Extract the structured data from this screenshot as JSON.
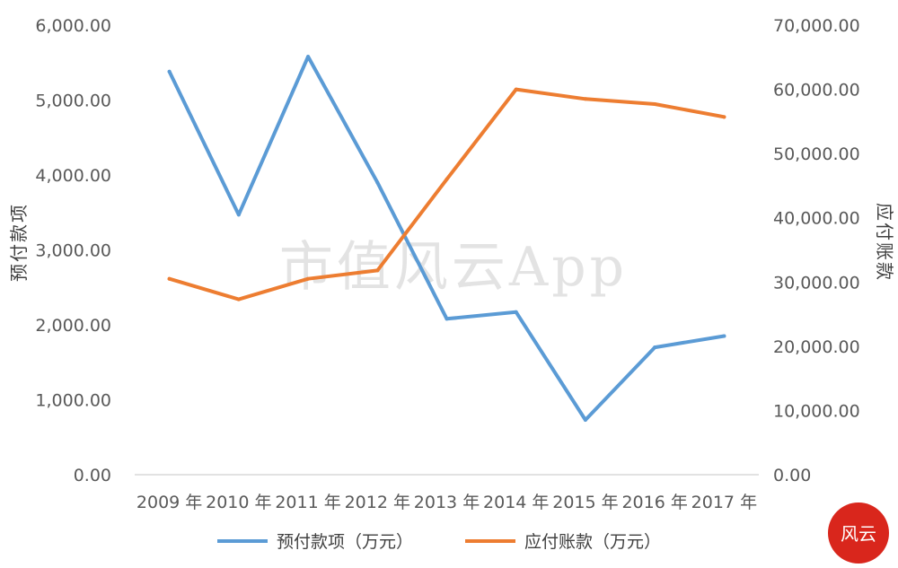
{
  "chart_data": {
    "type": "line",
    "categories": [
      "2009 年",
      "2010 年",
      "2011 年",
      "2012 年",
      "2013 年",
      "2014 年",
      "2015 年",
      "2016 年",
      "2017 年"
    ],
    "series": [
      {
        "name": "预付款项（万元）",
        "axis": "left",
        "color": "#5b9bd5",
        "values": [
          5380,
          3470,
          5580,
          3900,
          2080,
          2170,
          730,
          1700,
          1850
        ]
      },
      {
        "name": "应付账款（万元）",
        "axis": "right",
        "color": "#ed7d31",
        "values": [
          30500,
          27300,
          30500,
          31800,
          46000,
          60000,
          58500,
          57700,
          55700
        ]
      }
    ],
    "y_left": {
      "label": "预付款项",
      "ylim": [
        0,
        6000
      ],
      "ticks": [
        "0.00",
        "1,000.00",
        "2,000.00",
        "3,000.00",
        "4,000.00",
        "5,000.00",
        "6,000.00"
      ]
    },
    "y_right": {
      "label": "应付账款",
      "ylim": [
        0,
        70000
      ],
      "ticks": [
        "0.00",
        "10,000.00",
        "20,000.00",
        "30,000.00",
        "40,000.00",
        "50,000.00",
        "60,000.00",
        "70,000.00"
      ]
    },
    "grid": false,
    "legend_position": "bottom"
  },
  "watermark": "市值风云App",
  "seal_text": "风云",
  "colors": {
    "seal": "#d9261c",
    "axis": "#d9d9d9"
  }
}
